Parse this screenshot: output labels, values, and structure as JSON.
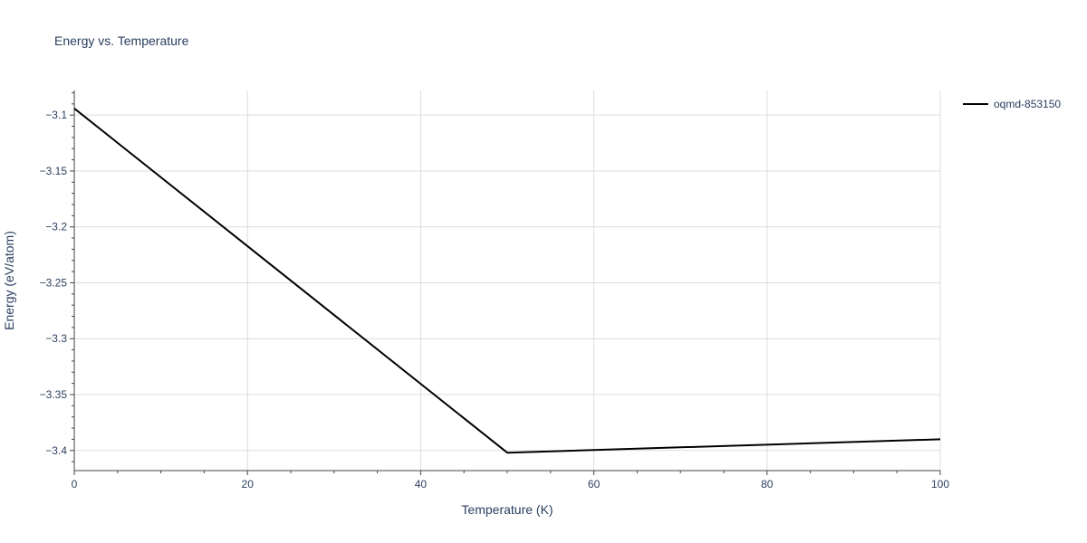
{
  "chart_data": {
    "type": "line",
    "title": "Energy vs. Temperature",
    "xlabel": "Temperature (K)",
    "ylabel": "Energy (eV/atom)",
    "xlim": [
      0,
      100
    ],
    "ylim": [
      -3.418,
      -3.078
    ],
    "x_ticks": [
      0,
      20,
      40,
      60,
      80,
      100
    ],
    "x_tick_labels": [
      "0",
      "20",
      "40",
      "60",
      "80",
      "100"
    ],
    "y_ticks": [
      -3.1,
      -3.15,
      -3.2,
      -3.25,
      -3.3,
      -3.35,
      -3.4
    ],
    "y_tick_labels": [
      "−3.1",
      "−3.15",
      "−3.2",
      "−3.25",
      "−3.3",
      "−3.35",
      "−3.4"
    ],
    "grid": true,
    "legend_position": "top-right",
    "series": [
      {
        "name": "oqmd-853150",
        "color": "#000000",
        "x": [
          0,
          50,
          100
        ],
        "y": [
          -3.094,
          -3.402,
          -3.39
        ]
      }
    ]
  }
}
